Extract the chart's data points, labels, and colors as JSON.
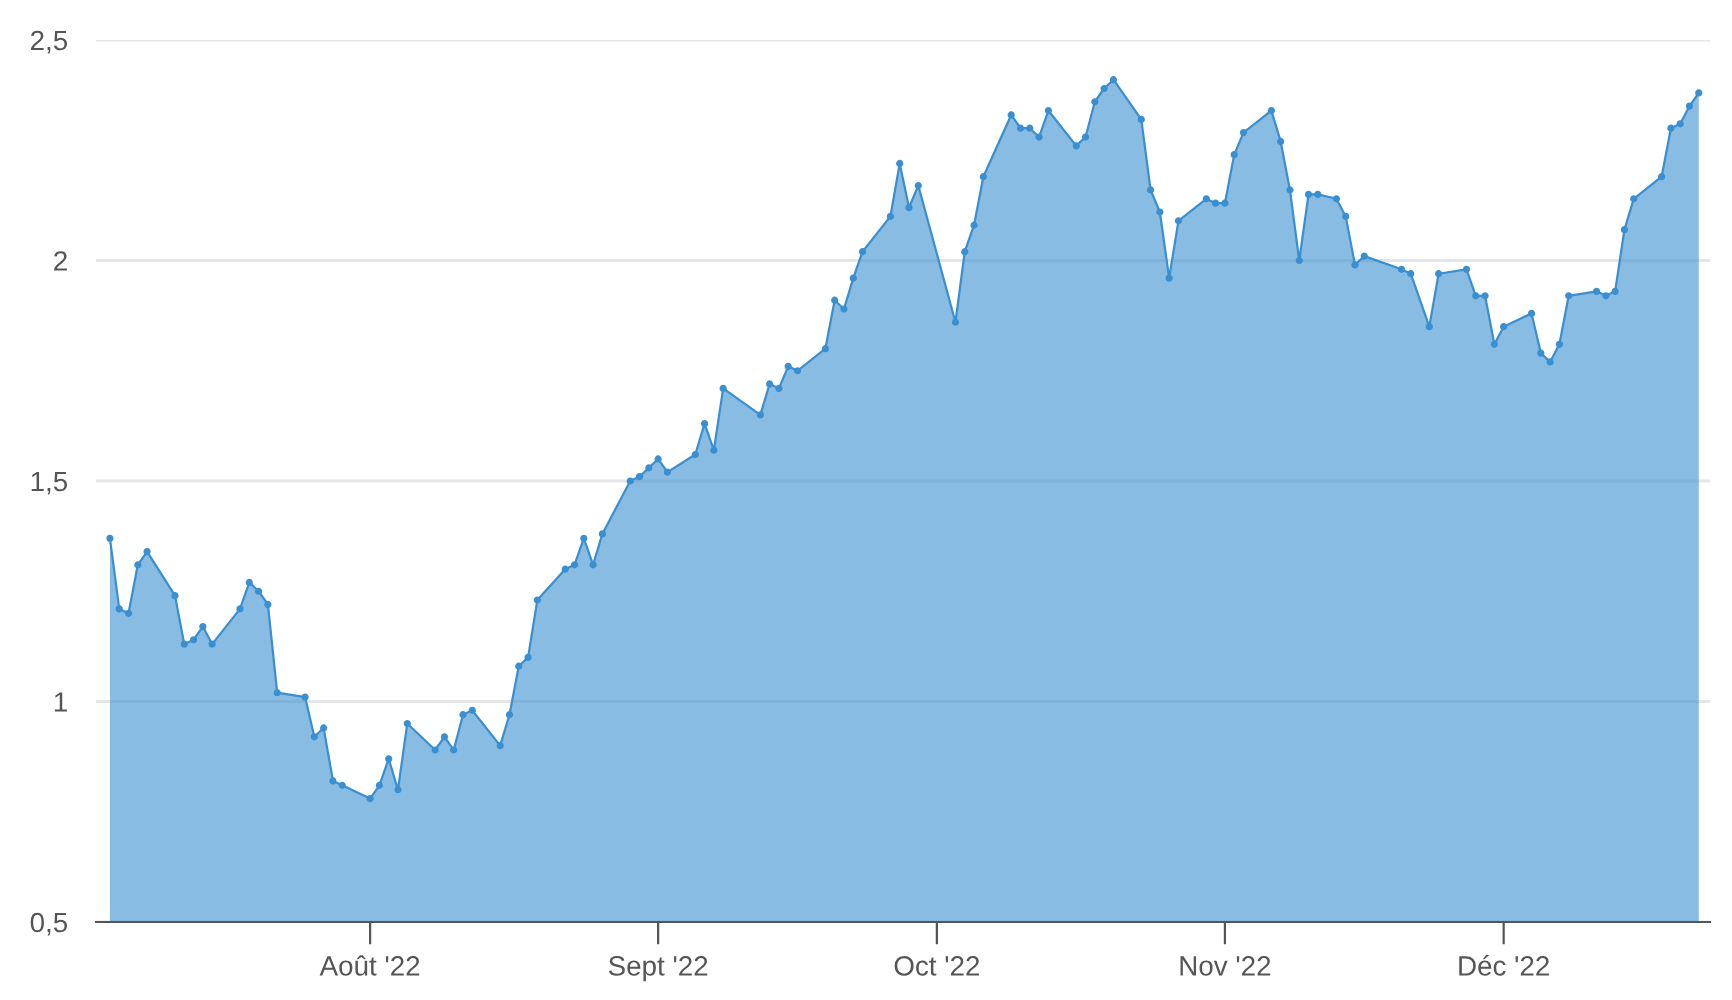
{
  "chart_data": {
    "type": "area",
    "x": [
      "2022-07-04",
      "2022-07-05",
      "2022-07-06",
      "2022-07-07",
      "2022-07-08",
      "2022-07-11",
      "2022-07-12",
      "2022-07-13",
      "2022-07-14",
      "2022-07-15",
      "2022-07-18",
      "2022-07-19",
      "2022-07-20",
      "2022-07-21",
      "2022-07-22",
      "2022-07-25",
      "2022-07-26",
      "2022-07-27",
      "2022-07-28",
      "2022-07-29",
      "2022-08-01",
      "2022-08-02",
      "2022-08-03",
      "2022-08-04",
      "2022-08-05",
      "2022-08-08",
      "2022-08-09",
      "2022-08-10",
      "2022-08-11",
      "2022-08-12",
      "2022-08-15",
      "2022-08-16",
      "2022-08-17",
      "2022-08-18",
      "2022-08-19",
      "2022-08-22",
      "2022-08-23",
      "2022-08-24",
      "2022-08-25",
      "2022-08-26",
      "2022-08-29",
      "2022-08-30",
      "2022-08-31",
      "2022-09-01",
      "2022-09-02",
      "2022-09-05",
      "2022-09-06",
      "2022-09-07",
      "2022-09-08",
      "2022-09-12",
      "2022-09-13",
      "2022-09-14",
      "2022-09-15",
      "2022-09-16",
      "2022-09-19",
      "2022-09-20",
      "2022-09-21",
      "2022-09-22",
      "2022-09-23",
      "2022-09-26",
      "2022-09-27",
      "2022-09-28",
      "2022-09-29",
      "2022-10-03",
      "2022-10-04",
      "2022-10-05",
      "2022-10-06",
      "2022-10-09",
      "2022-10-10",
      "2022-10-11",
      "2022-10-12",
      "2022-10-13",
      "2022-10-16",
      "2022-10-17",
      "2022-10-18",
      "2022-10-19",
      "2022-10-20",
      "2022-10-23",
      "2022-10-24",
      "2022-10-25",
      "2022-10-26",
      "2022-10-27",
      "2022-10-30",
      "2022-10-31",
      "2022-11-01",
      "2022-11-02",
      "2022-11-03",
      "2022-11-06",
      "2022-11-07",
      "2022-11-08",
      "2022-11-09",
      "2022-11-10",
      "2022-11-11",
      "2022-11-13",
      "2022-11-14",
      "2022-11-15",
      "2022-11-16",
      "2022-11-20",
      "2022-11-21",
      "2022-11-23",
      "2022-11-24",
      "2022-11-27",
      "2022-11-28",
      "2022-11-29",
      "2022-11-30",
      "2022-12-01",
      "2022-12-04",
      "2022-12-05",
      "2022-12-06",
      "2022-12-07",
      "2022-12-08",
      "2022-12-11",
      "2022-12-12",
      "2022-12-13",
      "2022-12-14",
      "2022-12-15",
      "2022-12-18",
      "2022-12-19",
      "2022-12-20",
      "2022-12-21",
      "2022-12-22"
    ],
    "values": [
      1.37,
      1.21,
      1.2,
      1.31,
      1.34,
      1.24,
      1.13,
      1.14,
      1.17,
      1.13,
      1.21,
      1.27,
      1.25,
      1.22,
      1.02,
      1.01,
      0.92,
      0.94,
      0.82,
      0.81,
      0.78,
      0.81,
      0.87,
      0.8,
      0.95,
      0.89,
      0.92,
      0.89,
      0.97,
      0.98,
      0.9,
      0.97,
      1.08,
      1.1,
      1.23,
      1.3,
      1.31,
      1.37,
      1.31,
      1.38,
      1.5,
      1.51,
      1.53,
      1.55,
      1.52,
      1.56,
      1.63,
      1.57,
      1.71,
      1.65,
      1.72,
      1.71,
      1.76,
      1.75,
      1.8,
      1.91,
      1.89,
      1.96,
      2.02,
      2.1,
      2.22,
      2.12,
      2.17,
      1.86,
      2.02,
      2.08,
      2.19,
      2.33,
      2.3,
      2.3,
      2.28,
      2.34,
      2.26,
      2.28,
      2.36,
      2.39,
      2.41,
      2.32,
      2.16,
      2.11,
      1.96,
      2.09,
      2.14,
      2.13,
      2.13,
      2.24,
      2.29,
      2.34,
      2.27,
      2.16,
      2.0,
      2.15,
      2.15,
      2.14,
      2.1,
      1.99,
      2.01,
      1.98,
      1.97,
      1.85,
      1.97,
      1.98,
      1.92,
      1.92,
      1.81,
      1.85,
      1.88,
      1.79,
      1.77,
      1.81,
      1.92,
      1.93,
      1.92,
      1.93,
      2.07,
      2.14,
      2.19,
      2.3,
      2.31,
      2.35,
      2.38
    ],
    "color": "#3a8fd0",
    "marker": "circle",
    "grid": "y",
    "xlim": [
      "2022-07-02T12:00",
      "2022-12-23T05:00"
    ],
    "xticks": [
      {
        "value": "2022-08-01",
        "label": "Août '22"
      },
      {
        "value": "2022-09-01",
        "label": "Sept '22"
      },
      {
        "value": "2022-10-01",
        "label": "Oct '22"
      },
      {
        "value": "2022-11-01",
        "label": "Nov '22"
      },
      {
        "value": "2022-12-01",
        "label": "Déc '22"
      }
    ],
    "ylim": [
      0.5,
      2.5
    ],
    "yticks": [
      {
        "value": 0.5,
        "label": "0,5"
      },
      1,
      {
        "value": 1.5,
        "label": "1,5"
      },
      2,
      {
        "value": 2.5,
        "label": "2,5"
      }
    ]
  }
}
